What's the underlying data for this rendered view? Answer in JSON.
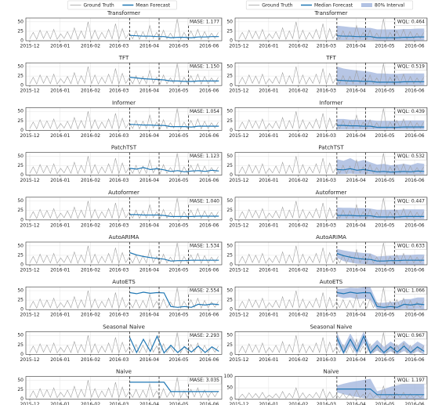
{
  "chart_data": {
    "type": "forecast-grid",
    "xlim": [
      -4,
      196
    ],
    "xticks": [
      {
        "value": 0,
        "label": "2015-12"
      },
      {
        "value": 31,
        "label": "2016-01"
      },
      {
        "value": 62,
        "label": "2016-02"
      },
      {
        "value": 91,
        "label": "2016-03"
      },
      {
        "value": 122,
        "label": "2016-04"
      },
      {
        "value": 152,
        "label": "2016-05"
      },
      {
        "value": 183,
        "label": "2016-06"
      }
    ],
    "x": [
      0,
      3.5,
      7,
      10.5,
      14,
      17.5,
      21,
      24.5,
      28,
      31.5,
      35,
      38.5,
      42,
      45.5,
      49,
      52.5,
      56,
      59.5,
      63,
      66.5,
      70,
      73.5,
      77,
      80.5,
      84,
      87.5,
      91,
      94.5,
      98,
      101.5,
      105,
      108.5,
      112,
      115.5,
      119,
      122.5,
      126,
      129.5,
      133,
      136.5,
      140,
      143.5,
      147,
      150.5,
      154,
      157.5,
      161,
      164.5,
      168,
      171.5,
      175,
      178.5,
      182,
      185.5,
      189,
      192.5
    ],
    "ground_truth": {
      "name": "Ground Truth",
      "color": "#a0a0a0",
      "values": [
        5,
        22,
        4,
        28,
        6,
        25,
        5,
        30,
        4,
        18,
        6,
        24,
        5,
        34,
        4,
        26,
        6,
        50,
        5,
        28,
        4,
        22,
        6,
        30,
        5,
        45,
        4,
        32,
        6,
        20,
        5,
        26,
        4,
        24,
        5,
        40,
        6,
        22,
        4,
        28,
        5,
        20,
        6,
        58,
        4,
        22,
        5,
        26,
        6,
        30,
        4,
        24,
        5,
        20,
        6,
        22
      ]
    },
    "splits": [
      102,
      132,
      162
    ],
    "forecast_x": [
      102,
      109,
      116,
      123,
      130,
      137,
      144,
      151,
      158,
      165,
      172,
      179,
      186,
      193
    ],
    "columns": [
      {
        "forecast_name": "Mean Forecast",
        "forecast_color": "#1f77b4",
        "panels": [
          {
            "title": "Transformer",
            "metric": "MASE: 1.177",
            "ylim": [
              0,
              60
            ],
            "yticks": [
              0,
              25,
              50
            ],
            "values": [
              14,
              13,
              12,
              12,
              11,
              11,
              8,
              9,
              9,
              8,
              10,
              10,
              11,
              11
            ]
          },
          {
            "title": "TFT",
            "metric": "MASE: 1.150",
            "ylim": [
              0,
              60
            ],
            "yticks": [
              0,
              25,
              50
            ],
            "values": [
              22,
              20,
              18,
              17,
              16,
              15,
              12,
              12,
              11,
              11,
              12,
              12,
              12,
              12
            ]
          },
          {
            "title": "Informer",
            "metric": "MASE: 1.054",
            "ylim": [
              0,
              60
            ],
            "yticks": [
              0,
              25,
              50
            ],
            "values": [
              16,
              15,
              14,
              14,
              13,
              13,
              10,
              10,
              10,
              9,
              11,
              11,
              11,
              11
            ]
          },
          {
            "title": "PatchTST",
            "metric": "MASE: 1.123",
            "ylim": [
              0,
              60
            ],
            "yticks": [
              0,
              25,
              50
            ],
            "values": [
              18,
              16,
              20,
              15,
              17,
              14,
              10,
              12,
              9,
              11,
              12,
              10,
              13,
              11
            ]
          },
          {
            "title": "Autoformer",
            "metric": "MASE: 1.040",
            "ylim": [
              0,
              60
            ],
            "yticks": [
              0,
              25,
              50
            ],
            "values": [
              14,
              14,
              13,
              13,
              13,
              12,
              9,
              9,
              9,
              9,
              10,
              10,
              10,
              10
            ]
          },
          {
            "title": "AutoARIMA",
            "metric": "MASE: 1.534",
            "ylim": [
              0,
              60
            ],
            "yticks": [
              0,
              25,
              50
            ],
            "values": [
              32,
              26,
              22,
              19,
              17,
              15,
              10,
              11,
              11,
              12,
              12,
              12,
              12,
              12
            ]
          },
          {
            "title": "AutoETS",
            "metric": "MASE: 2.554",
            "ylim": [
              0,
              60
            ],
            "yticks": [
              0,
              25,
              50
            ],
            "values": [
              45,
              42,
              46,
              43,
              45,
              44,
              8,
              6,
              8,
              6,
              14,
              12,
              15,
              13
            ]
          },
          {
            "title": "Seasonal Naive",
            "metric": "MASE: 2.293",
            "ylim": [
              0,
              60
            ],
            "yticks": [
              0,
              25,
              50
            ],
            "values": [
              45,
              5,
              40,
              8,
              48,
              4,
              24,
              5,
              20,
              6,
              22,
              5,
              20,
              8
            ]
          },
          {
            "title": "Naive",
            "metric": "MASE: 3.035",
            "ylim": [
              0,
              60
            ],
            "yticks": [
              0,
              25,
              50
            ],
            "values": [
              45,
              45,
              45,
              45,
              45,
              45,
              20,
              20,
              20,
              20,
              20,
              20,
              20,
              20
            ]
          }
        ]
      },
      {
        "forecast_name": "Median Forecast",
        "forecast_color": "#1f77b4",
        "interval_name": "80% Interval",
        "interval_color": "#9fb3dc",
        "panels": [
          {
            "title": "Transformer",
            "metric": "WQL: 0.464",
            "ylim": [
              0,
              60
            ],
            "yticks": [
              0,
              25,
              50
            ],
            "values": [
              13,
              12,
              12,
              11,
              11,
              11,
              8,
              8,
              8,
              8,
              9,
              9,
              10,
              10
            ],
            "lower": [
              2,
              2,
              2,
              2,
              2,
              2,
              1,
              1,
              1,
              1,
              1,
              1,
              1,
              1
            ],
            "upper": [
              40,
              38,
              36,
              35,
              34,
              34,
              30,
              30,
              30,
              30,
              31,
              31,
              32,
              32
            ]
          },
          {
            "title": "TFT",
            "metric": "WQL: 0.519",
            "ylim": [
              0,
              60
            ],
            "yticks": [
              0,
              25,
              50
            ],
            "values": [
              14,
              13,
              12,
              12,
              11,
              11,
              9,
              9,
              9,
              9,
              10,
              10,
              10,
              10
            ],
            "lower": [
              1,
              1,
              1,
              1,
              1,
              1,
              1,
              1,
              1,
              1,
              1,
              1,
              1,
              1
            ],
            "upper": [
              50,
              45,
              42,
              40,
              38,
              36,
              32,
              32,
              31,
              31,
              32,
              32,
              32,
              32
            ]
          },
          {
            "title": "Informer",
            "metric": "WQL: 0.439",
            "ylim": [
              0,
              60
            ],
            "yticks": [
              0,
              25,
              50
            ],
            "values": [
              13,
              13,
              12,
              12,
              11,
              11,
              8,
              8,
              8,
              8,
              9,
              9,
              9,
              9
            ],
            "lower": [
              2,
              2,
              2,
              2,
              2,
              2,
              2,
              2,
              2,
              2,
              2,
              2,
              2,
              2
            ],
            "upper": [
              30,
              30,
              28,
              28,
              27,
              27,
              25,
              25,
              25,
              25,
              26,
              26,
              26,
              26
            ]
          },
          {
            "title": "PatchTST",
            "metric": "WQL: 0.532",
            "ylim": [
              0,
              60
            ],
            "yticks": [
              0,
              25,
              50
            ],
            "values": [
              15,
              14,
              17,
              13,
              15,
              12,
              9,
              10,
              8,
              9,
              10,
              9,
              11,
              10
            ],
            "lower": [
              3,
              3,
              4,
              3,
              3,
              3,
              2,
              2,
              2,
              2,
              2,
              2,
              2,
              2
            ],
            "upper": [
              42,
              38,
              45,
              36,
              40,
              34,
              28,
              30,
              26,
              28,
              30,
              27,
              32,
              30
            ]
          },
          {
            "title": "Autoformer",
            "metric": "WQL: 0.447",
            "ylim": [
              0,
              60
            ],
            "yticks": [
              0,
              25,
              50
            ],
            "values": [
              12,
              12,
              12,
              11,
              11,
              11,
              8,
              8,
              8,
              8,
              9,
              9,
              9,
              9
            ],
            "lower": [
              2,
              2,
              2,
              2,
              2,
              2,
              2,
              2,
              2,
              2,
              2,
              2,
              2,
              2
            ],
            "upper": [
              33,
              32,
              32,
              31,
              31,
              30,
              27,
              27,
              27,
              27,
              28,
              28,
              28,
              28
            ]
          },
          {
            "title": "AutoARIMA",
            "metric": "WQL: 0.633",
            "ylim": [
              0,
              60
            ],
            "yticks": [
              0,
              25,
              50
            ],
            "values": [
              30,
              24,
              20,
              17,
              15,
              14,
              10,
              10,
              11,
              11,
              12,
              12,
              12,
              12
            ],
            "lower": [
              18,
              10,
              6,
              3,
              2,
              1,
              0,
              0,
              0,
              0,
              0,
              0,
              0,
              0
            ],
            "upper": [
              42,
              38,
              35,
              33,
              31,
              30,
              22,
              23,
              24,
              25,
              26,
              26,
              27,
              27
            ]
          },
          {
            "title": "AutoETS",
            "metric": "WQL: 1.066",
            "ylim": [
              0,
              60
            ],
            "yticks": [
              0,
              25,
              50
            ],
            "values": [
              45,
              42,
              46,
              43,
              45,
              44,
              8,
              6,
              8,
              6,
              14,
              12,
              15,
              13
            ],
            "lower": [
              35,
              30,
              32,
              28,
              29,
              27,
              0,
              0,
              0,
              0,
              2,
              0,
              2,
              0
            ],
            "upper": [
              55,
              55,
              58,
              57,
              59,
              59,
              18,
              18,
              20,
              20,
              28,
              28,
              32,
              32
            ]
          },
          {
            "title": "Seasonal Naive",
            "metric": "WQL: 0.967",
            "ylim": [
              0,
              60
            ],
            "yticks": [
              0,
              25,
              50
            ],
            "values": [
              45,
              5,
              40,
              8,
              48,
              4,
              24,
              5,
              20,
              6,
              22,
              5,
              20,
              8
            ],
            "lower": [
              30,
              0,
              25,
              0,
              30,
              0,
              10,
              0,
              8,
              0,
              9,
              0,
              8,
              0
            ],
            "upper": [
              58,
              20,
              55,
              24,
              60,
              20,
              38,
              20,
              34,
              22,
              36,
              20,
              34,
              24
            ]
          },
          {
            "title": "Naive",
            "metric": "WQL: 1.197",
            "ylim": [
              0,
              100
            ],
            "yticks": [
              0,
              50,
              100
            ],
            "values": [
              45,
              45,
              45,
              45,
              45,
              45,
              20,
              20,
              20,
              20,
              20,
              20,
              20,
              20
            ],
            "lower": [
              30,
              22,
              15,
              10,
              5,
              2,
              5,
              0,
              0,
              0,
              0,
              0,
              0,
              0
            ],
            "upper": [
              60,
              68,
              75,
              80,
              85,
              90,
              35,
              45,
              55,
              62,
              68,
              72,
              76,
              80
            ]
          }
        ]
      }
    ]
  }
}
